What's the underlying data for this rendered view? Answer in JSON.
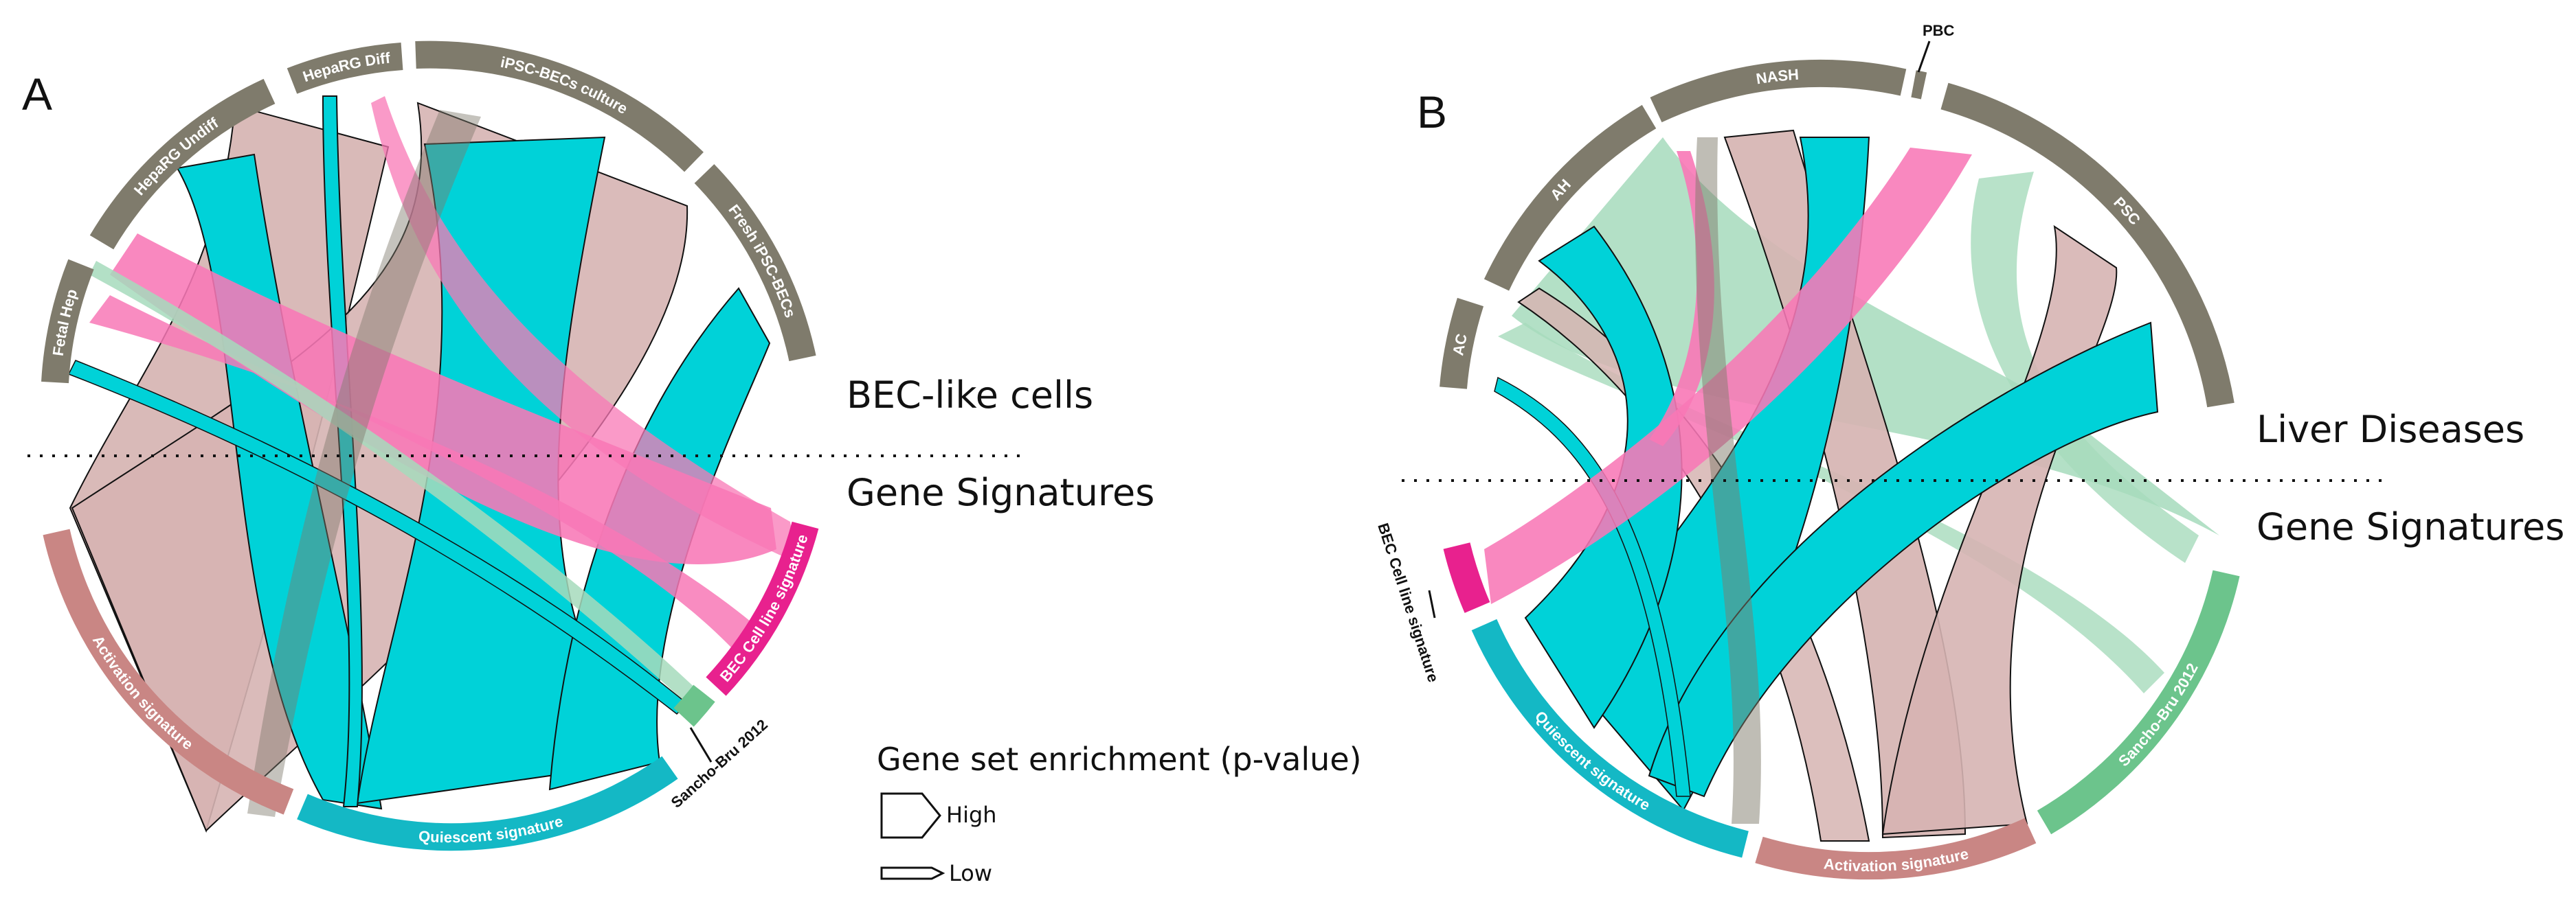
{
  "colors": {
    "grey": "#7f7b6c",
    "cyan": "#00d2d8",
    "rose": "#d6b4b2",
    "pink": "#f878b6",
    "mint": "#a6dbbc",
    "magenta": "#e8218e",
    "green": "#6cc48c",
    "activation_arc": "#c98684",
    "quiescent_arc": "#14b8c5"
  },
  "panel_a": {
    "letter": "A",
    "top_label": "BEC-like cells",
    "bottom_label": "Gene Signatures",
    "cell_sources": [
      "Fetal Hep",
      "HepaRG Undiff",
      "HepaRG Diff",
      "iPSC-BECs culture",
      "Fresh iPSC-BECs"
    ],
    "signatures": [
      "Activation signature",
      "Quiescent signature",
      "Sancho-Bru 2012",
      "BEC Cell line signature"
    ]
  },
  "panel_b": {
    "letter": "B",
    "top_label": "Liver Diseases",
    "bottom_label": "Gene Signatures",
    "diseases": [
      "AC",
      "AH",
      "NASH",
      "PBC",
      "PSC"
    ],
    "signatures": [
      "BEC Cell line signature",
      "Quiescent signature",
      "Activation signature",
      "Sancho-Bru 2012"
    ]
  },
  "legend": {
    "title": "Gene set enrichment (p-value)",
    "high": "High",
    "low": "Low"
  }
}
